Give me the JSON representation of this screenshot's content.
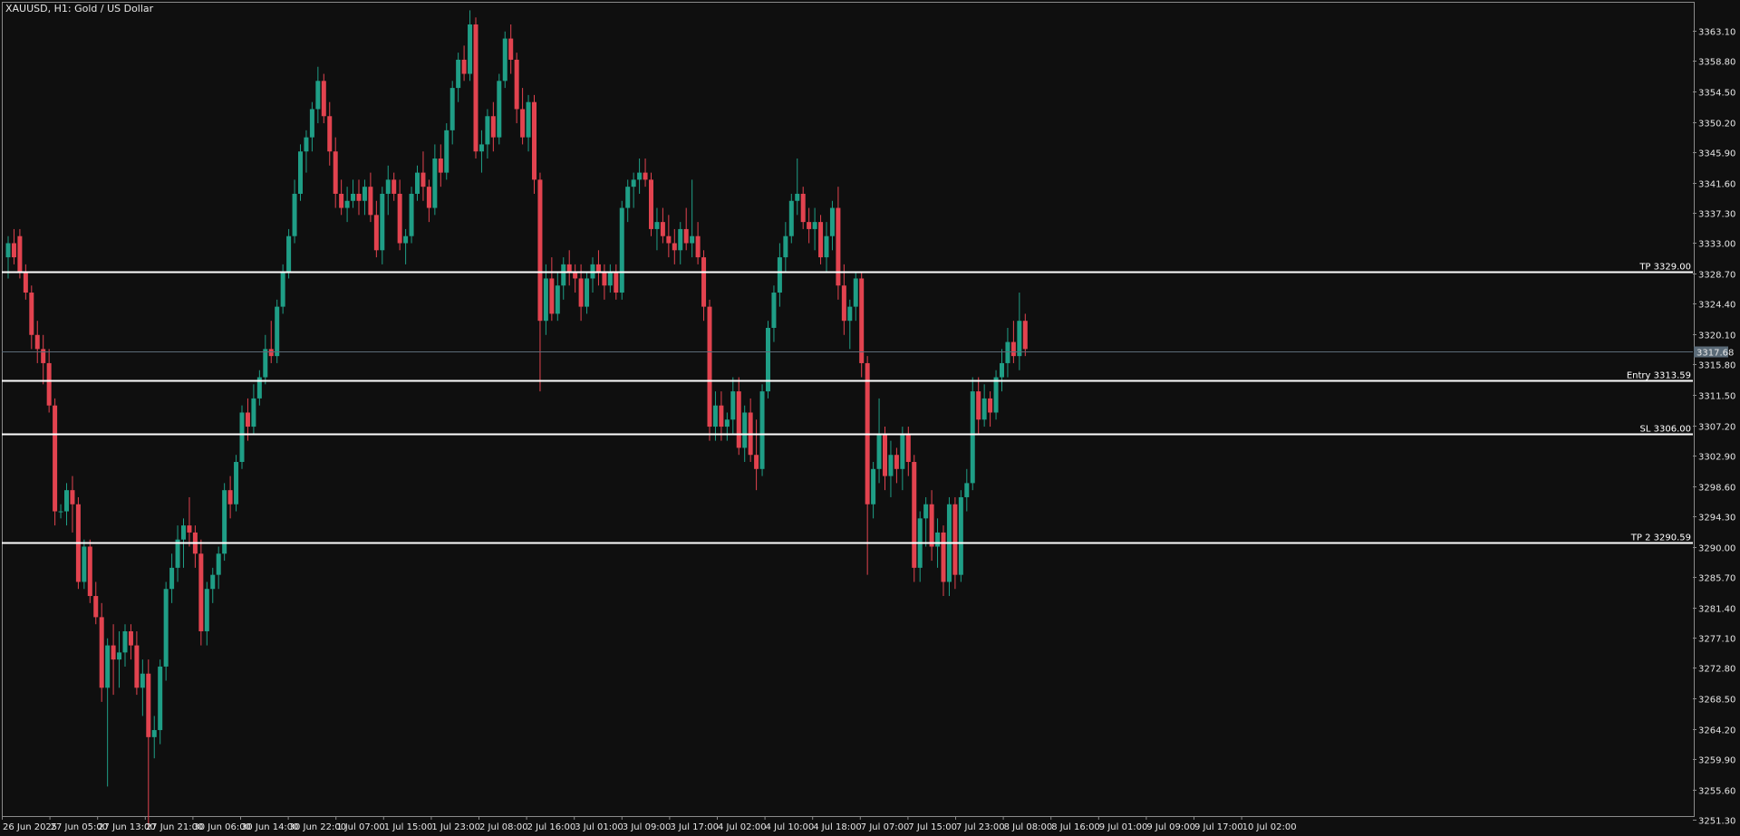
{
  "header": {
    "symbol_title": "XAUUSD, H1:  Gold / US Dollar"
  },
  "colors": {
    "background": "#0f0f0f",
    "bull": "#1f9e86",
    "bear": "#e2434f",
    "level_line": "#ffffff",
    "current_line": "#5b6b78",
    "axis_text": "#e6e6e6"
  },
  "price_axis": {
    "ticks": [
      "3363.10",
      "3358.80",
      "3354.50",
      "3350.20",
      "3345.90",
      "3341.60",
      "3337.30",
      "3333.00",
      "3328.70",
      "3324.40",
      "3320.10",
      "3315.80",
      "3311.50",
      "3307.20",
      "3302.90",
      "3298.60",
      "3294.30",
      "3290.00",
      "3285.70",
      "3281.40",
      "3277.10",
      "3272.80",
      "3268.50",
      "3264.20",
      "3259.90",
      "3255.60",
      "3251.30"
    ],
    "current_price": "3317.68"
  },
  "time_axis": {
    "labels": [
      "26 Jun 2025",
      "27 Jun 05:00",
      "27 Jun 13:00",
      "27 Jun 21:00",
      "30 Jun 06:00",
      "30 Jun 14:00",
      "30 Jun 22:00",
      "1 Jul 07:00",
      "1 Jul 15:00",
      "1 Jul 23:00",
      "2 Jul 08:00",
      "2 Jul 16:00",
      "3 Jul 01:00",
      "3 Jul 09:00",
      "3 Jul 17:00",
      "4 Jul 02:00",
      "4 Jul 10:00",
      "4 Jul 18:00",
      "7 Jul 07:00",
      "7 Jul 15:00",
      "7 Jul 23:00",
      "8 Jul 08:00",
      "8 Jul 16:00",
      "9 Jul 01:00",
      "9 Jul 09:00",
      "9 Jul 17:00",
      "10 Jul 02:00"
    ]
  },
  "levels": [
    {
      "label": "TP 3329.00",
      "price": 3329.0
    },
    {
      "label": "Entry 3313.59",
      "price": 3313.59
    },
    {
      "label": "SL 3306.00",
      "price": 3306.0
    },
    {
      "label": "TP 2 3290.59",
      "price": 3290.59
    }
  ],
  "chart_data": {
    "type": "candlestick",
    "title": "XAUUSD, H1:  Gold / US Dollar",
    "ylim": [
      3248.0,
      3366.0
    ],
    "candles": [
      [
        3331,
        3334,
        3328,
        3333
      ],
      [
        3333,
        3335,
        3330,
        3331
      ],
      [
        3334,
        3335,
        3328,
        3329
      ],
      [
        3329,
        3330,
        3325,
        3326
      ],
      [
        3326,
        3327,
        3318,
        3320
      ],
      [
        3320,
        3322,
        3316,
        3318
      ],
      [
        3318,
        3320,
        3313,
        3316
      ],
      [
        3316,
        3318,
        3309,
        3310
      ],
      [
        3310,
        3311,
        3293,
        3295
      ],
      [
        3295,
        3296,
        3294,
        3295
      ],
      [
        3295,
        3299,
        3293,
        3298
      ],
      [
        3298,
        3300,
        3292,
        3296
      ],
      [
        3296,
        3297,
        3284,
        3285
      ],
      [
        3285,
        3291,
        3284,
        3290
      ],
      [
        3290,
        3291,
        3282,
        3283
      ],
      [
        3283,
        3285,
        3279,
        3280
      ],
      [
        3280,
        3282,
        3268,
        3270
      ],
      [
        3270,
        3277,
        3256,
        3276
      ],
      [
        3276,
        3279,
        3269,
        3274
      ],
      [
        3274,
        3278,
        3270,
        3275
      ],
      [
        3275,
        3279,
        3273,
        3278
      ],
      [
        3278,
        3279,
        3274,
        3276
      ],
      [
        3276,
        3278,
        3269,
        3270
      ],
      [
        3270,
        3274,
        3266,
        3272
      ],
      [
        3272,
        3274,
        3250,
        3263
      ],
      [
        3263,
        3266,
        3260,
        3264
      ],
      [
        3264,
        3274,
        3262,
        3273
      ],
      [
        3273,
        3285,
        3271,
        3284
      ],
      [
        3284,
        3289,
        3282,
        3287
      ],
      [
        3287,
        3293,
        3285,
        3291
      ],
      [
        3291,
        3294,
        3287,
        3293
      ],
      [
        3293,
        3297,
        3290,
        3292
      ],
      [
        3292,
        3293,
        3287,
        3289
      ],
      [
        3289,
        3291,
        3276,
        3278
      ],
      [
        3278,
        3285,
        3276,
        3284
      ],
      [
        3284,
        3287,
        3282,
        3286
      ],
      [
        3286,
        3290,
        3284,
        3289
      ],
      [
        3289,
        3299,
        3288,
        3298
      ],
      [
        3298,
        3300,
        3294,
        3296
      ],
      [
        3296,
        3303,
        3295,
        3302
      ],
      [
        3302,
        3310,
        3301,
        3309
      ],
      [
        3309,
        3311,
        3305,
        3307
      ],
      [
        3307,
        3313,
        3306,
        3311
      ],
      [
        3311,
        3315,
        3310,
        3314
      ],
      [
        3314,
        3320,
        3313,
        3318
      ],
      [
        3318,
        3322,
        3316,
        3317
      ],
      [
        3317,
        3325,
        3316,
        3324
      ],
      [
        3324,
        3330,
        3323,
        3329
      ],
      [
        3329,
        3335,
        3328,
        3334
      ],
      [
        3334,
        3342,
        3333,
        3340
      ],
      [
        3340,
        3347,
        3339,
        3346
      ],
      [
        3346,
        3349,
        3343,
        3348
      ],
      [
        3348,
        3353,
        3346,
        3352
      ],
      [
        3352,
        3358,
        3350,
        3356
      ],
      [
        3356,
        3357,
        3350,
        3351
      ],
      [
        3351,
        3353,
        3344,
        3346
      ],
      [
        3346,
        3348,
        3338,
        3340
      ],
      [
        3340,
        3342,
        3337,
        3338
      ],
      [
        3338,
        3341,
        3336,
        3339
      ],
      [
        3339,
        3342,
        3338,
        3340
      ],
      [
        3340,
        3342,
        3337,
        3339
      ],
      [
        3339,
        3342,
        3337,
        3341
      ],
      [
        3341,
        3343,
        3336,
        3337
      ],
      [
        3337,
        3339,
        3331,
        3332
      ],
      [
        3332,
        3341,
        3330,
        3340
      ],
      [
        3340,
        3344,
        3337,
        3342
      ],
      [
        3342,
        3343,
        3339,
        3340
      ],
      [
        3340,
        3342,
        3332,
        3333
      ],
      [
        3333,
        3335,
        3330,
        3334
      ],
      [
        3334,
        3341,
        3333,
        3340
      ],
      [
        3340,
        3344,
        3339,
        3343
      ],
      [
        3343,
        3346,
        3339,
        3341
      ],
      [
        3341,
        3342,
        3336,
        3338
      ],
      [
        3338,
        3347,
        3337,
        3345
      ],
      [
        3345,
        3347,
        3341,
        3343
      ],
      [
        3343,
        3350,
        3342,
        3349
      ],
      [
        3349,
        3356,
        3347,
        3355
      ],
      [
        3355,
        3360,
        3353,
        3359
      ],
      [
        3359,
        3361,
        3356,
        3357
      ],
      [
        3357,
        3366,
        3356,
        3364
      ],
      [
        3364,
        3365,
        3345,
        3346
      ],
      [
        3346,
        3349,
        3343,
        3347
      ],
      [
        3347,
        3352,
        3345,
        3351
      ],
      [
        3351,
        3353,
        3346,
        3348
      ],
      [
        3348,
        3357,
        3347,
        3356
      ],
      [
        3356,
        3363,
        3355,
        3362
      ],
      [
        3362,
        3364,
        3357,
        3359
      ],
      [
        3359,
        3360,
        3350,
        3352
      ],
      [
        3352,
        3355,
        3347,
        3348
      ],
      [
        3348,
        3354,
        3346,
        3353
      ],
      [
        3353,
        3354,
        3340,
        3342
      ],
      [
        3342,
        3343,
        3312,
        3322
      ],
      [
        3322,
        3330,
        3320,
        3328
      ],
      [
        3328,
        3331,
        3322,
        3323
      ],
      [
        3323,
        3329,
        3322,
        3327
      ],
      [
        3327,
        3331,
        3325,
        3330
      ],
      [
        3330,
        3332,
        3327,
        3329
      ],
      [
        3329,
        3330,
        3326,
        3328
      ],
      [
        3328,
        3330,
        3322,
        3324
      ],
      [
        3324,
        3329,
        3323,
        3328
      ],
      [
        3328,
        3331,
        3326,
        3330
      ],
      [
        3330,
        3332,
        3327,
        3329
      ],
      [
        3329,
        3330,
        3325,
        3327
      ],
      [
        3327,
        3330,
        3326,
        3329
      ],
      [
        3329,
        3330,
        3325,
        3326
      ],
      [
        3326,
        3339,
        3325,
        3338
      ],
      [
        3338,
        3342,
        3336,
        3341
      ],
      [
        3341,
        3343,
        3338,
        3342
      ],
      [
        3342,
        3345,
        3340,
        3343
      ],
      [
        3343,
        3345,
        3341,
        3342
      ],
      [
        3342,
        3343,
        3334,
        3335
      ],
      [
        3335,
        3338,
        3332,
        3336
      ],
      [
        3336,
        3338,
        3333,
        3334
      ],
      [
        3334,
        3337,
        3331,
        3333
      ],
      [
        3333,
        3335,
        3330,
        3332
      ],
      [
        3332,
        3336,
        3330,
        3335
      ],
      [
        3335,
        3338,
        3332,
        3333
      ],
      [
        3333,
        3342,
        3331,
        3334
      ],
      [
        3334,
        3336,
        3330,
        3331
      ],
      [
        3331,
        3332,
        3322,
        3324
      ],
      [
        3324,
        3325,
        3305,
        3307
      ],
      [
        3307,
        3312,
        3305,
        3310
      ],
      [
        3310,
        3312,
        3305,
        3307
      ],
      [
        3307,
        3309,
        3305,
        3308
      ],
      [
        3308,
        3314,
        3306,
        3312
      ],
      [
        3312,
        3314,
        3303,
        3304
      ],
      [
        3304,
        3310,
        3302,
        3309
      ],
      [
        3309,
        3311,
        3302,
        3303
      ],
      [
        3303,
        3308,
        3298,
        3301
      ],
      [
        3301,
        3313,
        3300,
        3312
      ],
      [
        3312,
        3322,
        3311,
        3321
      ],
      [
        3321,
        3327,
        3319,
        3326
      ],
      [
        3326,
        3333,
        3324,
        3331
      ],
      [
        3331,
        3336,
        3329,
        3334
      ],
      [
        3334,
        3340,
        3333,
        3339
      ],
      [
        3339,
        3345,
        3337,
        3340
      ],
      [
        3340,
        3341,
        3335,
        3336
      ],
      [
        3336,
        3338,
        3333,
        3335
      ],
      [
        3335,
        3338,
        3332,
        3336
      ],
      [
        3336,
        3337,
        3330,
        3331
      ],
      [
        3331,
        3336,
        3329,
        3334
      ],
      [
        3334,
        3339,
        3332,
        3338
      ],
      [
        3338,
        3341,
        3325,
        3327
      ],
      [
        3327,
        3330,
        3320,
        3322
      ],
      [
        3322,
        3325,
        3318,
        3324
      ],
      [
        3324,
        3329,
        3322,
        3328
      ],
      [
        3328,
        3329,
        3314,
        3316
      ],
      [
        3316,
        3317,
        3286,
        3296
      ],
      [
        3296,
        3302,
        3294,
        3301
      ],
      [
        3301,
        3311,
        3299,
        3306
      ],
      [
        3306,
        3307,
        3298,
        3300
      ],
      [
        3300,
        3305,
        3297,
        3303
      ],
      [
        3303,
        3304,
        3299,
        3301
      ],
      [
        3301,
        3307,
        3298,
        3306
      ],
      [
        3306,
        3307,
        3300,
        3302
      ],
      [
        3302,
        3303,
        3285,
        3287
      ],
      [
        3287,
        3295,
        3285,
        3294
      ],
      [
        3294,
        3297,
        3290,
        3296
      ],
      [
        3296,
        3298,
        3288,
        3290
      ],
      [
        3290,
        3294,
        3287,
        3292
      ],
      [
        3292,
        3293,
        3283,
        3285
      ],
      [
        3285,
        3297,
        3283,
        3296
      ],
      [
        3296,
        3297,
        3284,
        3286
      ],
      [
        3286,
        3298,
        3285,
        3297
      ],
      [
        3297,
        3301,
        3295,
        3299
      ],
      [
        3299,
        3314,
        3298,
        3312
      ],
      [
        3312,
        3314,
        3306,
        3308
      ],
      [
        3308,
        3313,
        3307,
        3311
      ],
      [
        3311,
        3312,
        3307,
        3309
      ],
      [
        3309,
        3315,
        3308,
        3314
      ],
      [
        3314,
        3318,
        3312,
        3316
      ],
      [
        3316,
        3321,
        3314,
        3319
      ],
      [
        3319,
        3322,
        3316,
        3317
      ],
      [
        3317,
        3326,
        3315,
        3322
      ],
      [
        3322,
        3323,
        3317,
        3318
      ]
    ]
  }
}
